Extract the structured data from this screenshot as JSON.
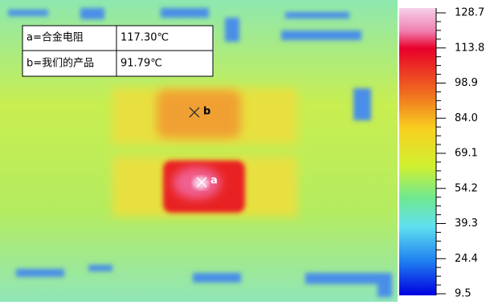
{
  "table": {
    "rows": [
      [
        "a=合金电阻",
        "117.30℃"
      ],
      [
        "b=我们的产品",
        "91.79℃"
      ]
    ]
  },
  "markers": [
    {
      "label": "b"
    },
    {
      "label": "a"
    }
  ],
  "colorbar": {
    "range": [
      9.5,
      128.7
    ],
    "ticks": [
      128.7,
      113.8,
      98.9,
      {
        "value": 84,
        "label": "84.0"
      },
      69.1,
      54.2,
      39.3,
      24.4,
      9.5
    ]
  }
}
